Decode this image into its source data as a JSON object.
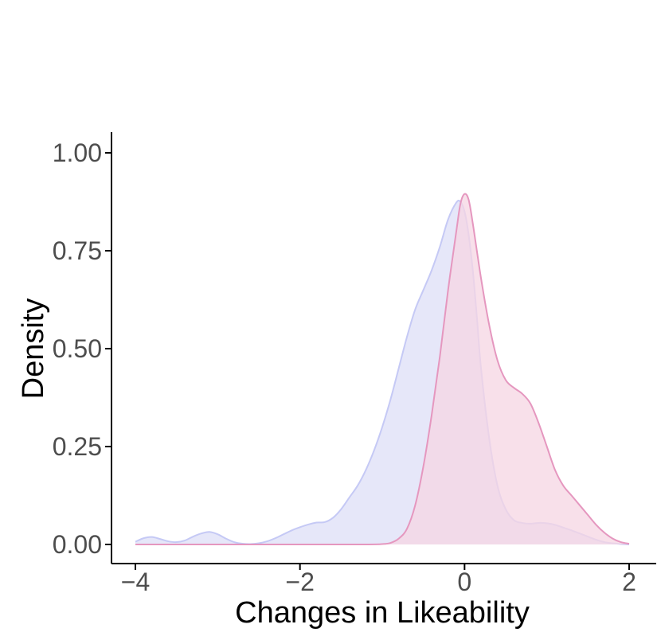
{
  "chart_data": {
    "type": "area",
    "title": "",
    "xlabel": "Changes in Likeability",
    "ylabel": "Density",
    "xlim": [
      -4,
      2
    ],
    "ylim": [
      0,
      1.0
    ],
    "grid": false,
    "legend": "none",
    "x_ticks": [
      -4,
      -2,
      0,
      2
    ],
    "x_tick_labels": [
      "−4",
      "−2",
      "0",
      "2"
    ],
    "y_ticks": [
      0,
      0.25,
      0.5,
      0.75,
      1.0
    ],
    "y_tick_labels": [
      "0.00",
      "0.25",
      "0.50",
      "0.75",
      "1.00"
    ],
    "series": [
      {
        "color_fill": "#e6e7f9",
        "color_line": "#c5c9f5",
        "points": [
          [
            -4.0,
            0.007
          ],
          [
            -3.9,
            0.016
          ],
          [
            -3.8,
            0.019
          ],
          [
            -3.7,
            0.014
          ],
          [
            -3.6,
            0.008
          ],
          [
            -3.5,
            0.006
          ],
          [
            -3.4,
            0.01
          ],
          [
            -3.3,
            0.02
          ],
          [
            -3.2,
            0.028
          ],
          [
            -3.1,
            0.032
          ],
          [
            -3.0,
            0.026
          ],
          [
            -2.9,
            0.015
          ],
          [
            -2.8,
            0.006
          ],
          [
            -2.7,
            0.002
          ],
          [
            -2.6,
            0.001
          ],
          [
            -2.5,
            0.003
          ],
          [
            -2.4,
            0.008
          ],
          [
            -2.3,
            0.016
          ],
          [
            -2.2,
            0.026
          ],
          [
            -2.1,
            0.036
          ],
          [
            -2.0,
            0.044
          ],
          [
            -1.9,
            0.051
          ],
          [
            -1.8,
            0.056
          ],
          [
            -1.7,
            0.057
          ],
          [
            -1.6,
            0.068
          ],
          [
            -1.5,
            0.09
          ],
          [
            -1.4,
            0.12
          ],
          [
            -1.3,
            0.15
          ],
          [
            -1.2,
            0.19
          ],
          [
            -1.1,
            0.24
          ],
          [
            -1.0,
            0.3
          ],
          [
            -0.9,
            0.37
          ],
          [
            -0.8,
            0.45
          ],
          [
            -0.7,
            0.53
          ],
          [
            -0.6,
            0.6
          ],
          [
            -0.5,
            0.65
          ],
          [
            -0.4,
            0.7
          ],
          [
            -0.3,
            0.76
          ],
          [
            -0.2,
            0.83
          ],
          [
            -0.1,
            0.873
          ],
          [
            -0.05,
            0.875
          ],
          [
            0.0,
            0.85
          ],
          [
            0.05,
            0.79
          ],
          [
            0.1,
            0.7
          ],
          [
            0.15,
            0.58
          ],
          [
            0.2,
            0.45
          ],
          [
            0.3,
            0.27
          ],
          [
            0.4,
            0.15
          ],
          [
            0.5,
            0.09
          ],
          [
            0.6,
            0.062
          ],
          [
            0.7,
            0.055
          ],
          [
            0.8,
            0.053
          ],
          [
            0.9,
            0.055
          ],
          [
            1.0,
            0.054
          ],
          [
            1.1,
            0.05
          ],
          [
            1.2,
            0.043
          ],
          [
            1.3,
            0.036
          ],
          [
            1.4,
            0.028
          ],
          [
            1.5,
            0.02
          ],
          [
            1.6,
            0.012
          ],
          [
            1.7,
            0.006
          ],
          [
            1.8,
            0.003
          ],
          [
            1.9,
            0.001
          ],
          [
            2.0,
            0.0
          ]
        ]
      },
      {
        "color_fill": "#f6d5e3",
        "color_line": "#e597bf",
        "points": [
          [
            -4.0,
            0.0
          ],
          [
            -3.0,
            0.0
          ],
          [
            -2.0,
            0.0
          ],
          [
            -1.2,
            0.0
          ],
          [
            -1.0,
            0.001
          ],
          [
            -0.9,
            0.004
          ],
          [
            -0.8,
            0.015
          ],
          [
            -0.7,
            0.04
          ],
          [
            -0.6,
            0.1
          ],
          [
            -0.5,
            0.2
          ],
          [
            -0.4,
            0.33
          ],
          [
            -0.3,
            0.48
          ],
          [
            -0.2,
            0.65
          ],
          [
            -0.1,
            0.8
          ],
          [
            -0.05,
            0.87
          ],
          [
            0.0,
            0.895
          ],
          [
            0.05,
            0.88
          ],
          [
            0.1,
            0.82
          ],
          [
            0.2,
            0.68
          ],
          [
            0.3,
            0.56
          ],
          [
            0.4,
            0.47
          ],
          [
            0.5,
            0.42
          ],
          [
            0.6,
            0.4
          ],
          [
            0.7,
            0.385
          ],
          [
            0.8,
            0.36
          ],
          [
            0.9,
            0.31
          ],
          [
            1.0,
            0.25
          ],
          [
            1.1,
            0.19
          ],
          [
            1.2,
            0.15
          ],
          [
            1.3,
            0.125
          ],
          [
            1.4,
            0.1
          ],
          [
            1.5,
            0.075
          ],
          [
            1.6,
            0.05
          ],
          [
            1.7,
            0.03
          ],
          [
            1.8,
            0.015
          ],
          [
            1.9,
            0.006
          ],
          [
            2.0,
            0.002
          ]
        ]
      }
    ]
  }
}
